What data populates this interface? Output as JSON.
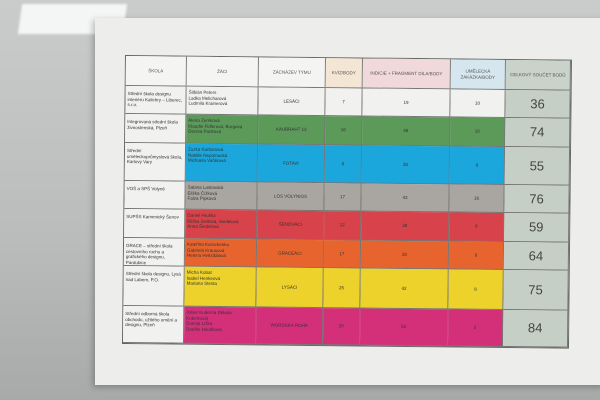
{
  "headers": [
    "ŠKOLA",
    "ŽÁCI",
    "ZÁCNÁZEV TÝMU",
    "KVÍZ/BODY",
    "INDICIE + FRAGMENT DÍLA/BODY",
    "UMĚLECKÁ ZAKÁZKA/BODY",
    "CELKOVÝ SOUČET BODŮ"
  ],
  "header_colors": [
    "#f4f4f2",
    "#f4f4f2",
    "#f4f4f2",
    "#f3e6d4",
    "#f1d8da",
    "#d6e6ee",
    "#c9d3c9"
  ],
  "rows": [
    {
      "school": "Střední škola designu interiéru Kalichry – Liberec, s.r.o.",
      "students": "Šilbián Peters\nLadka Melicharová\nLudmila Krainerová",
      "team": "LESÁCI",
      "quiz": "7",
      "clues": "19",
      "art": "10",
      "total": "36",
      "color": "#f1f1ef"
    },
    {
      "school": "Integrovaná střední škola živnostenská, Plzeň",
      "students": "Alena Zemková\nKlaudie Fidlerová, Burgová\nDenisa Panková",
      "team": "KAUBRAHT 13",
      "quiz": "16",
      "clues": "48",
      "art": "10",
      "total": "74",
      "color": "#5c9a5a"
    },
    {
      "school": "Střední uměleckoprůmyslová škola, Karlovy Vary",
      "students": "Zuzka Karbanová\nNatálie Nepomucká\nMichaela Vařáková",
      "team": "FOTAVI",
      "quiz": "8",
      "clues": "38",
      "art": "9",
      "total": "55",
      "color": "#1ba6dc"
    },
    {
      "school": "VOŠ a SPŠ Volyně",
      "students": "Sabina Lastovská\nEliška Čížková\nFalza Pípková",
      "team": "LOS VOLYNIOS",
      "quiz": "17",
      "clues": "43",
      "art": "16",
      "total": "76",
      "color": "#a9a6a2"
    },
    {
      "school": "SUPŠS Kamenický Šenov",
      "students": "Daniel Hruška\nEliška Sinilová, Seidelová\nAnna Šindelová",
      "team": "ŠENOVÁCI",
      "quiz": "12",
      "clues": "38",
      "art": "9",
      "total": "59",
      "color": "#d8424a"
    },
    {
      "school": "GRACE – střední škola cestovního ruchu a grafického designu, Pardubice",
      "students": "Kateřina Kurochenko\nGabriela Krausová\nHelena Hvězdálová",
      "team": "GRACEÁCI",
      "quiz": "17",
      "clues": "38",
      "art": "9",
      "total": "64",
      "color": "#e8642e"
    },
    {
      "school": "Střední škola designu, Lysá nad Labem, P.O.",
      "students": "Micha Kobat\nIsabel Henkeová\nMariana Stesta",
      "team": "LYSÁCI",
      "quiz": "25",
      "clues": "42",
      "art": "8",
      "total": "75",
      "color": "#ecd22a"
    },
    {
      "school": "Střední odborná škola obchodu, užitého umění a designu, Plzeň",
      "students": "Julian Kuderna (Nikola Kubertová)\nDuenja Liška\nDoefke Houšková",
      "team": "WORDSKA ROHA",
      "quiz": "29",
      "clues": "53",
      "art": "2",
      "total": "84",
      "color": "#d4307a"
    }
  ]
}
